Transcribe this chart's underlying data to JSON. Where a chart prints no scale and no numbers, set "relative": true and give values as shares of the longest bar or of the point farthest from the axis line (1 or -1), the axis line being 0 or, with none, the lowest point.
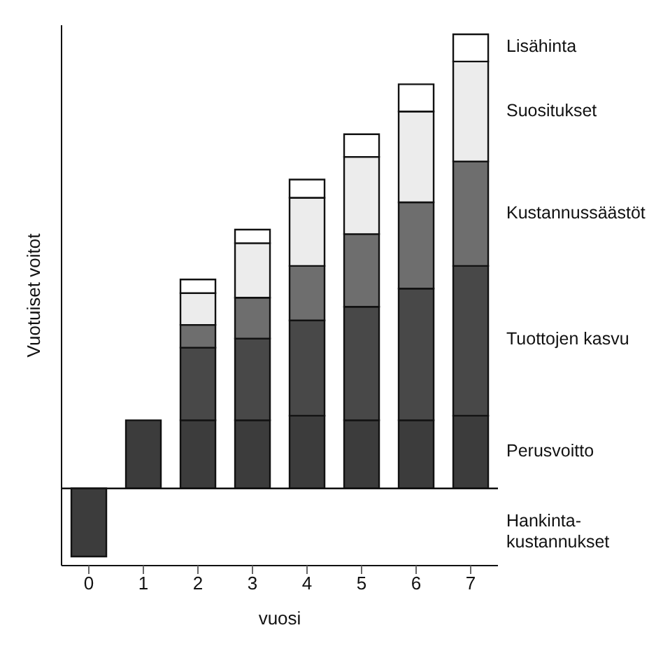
{
  "chart_data": {
    "type": "bar",
    "stacked": true,
    "relative": true,
    "xlabel": "vuosi",
    "ylabel": "Vuotuiset voitot",
    "legend": "right",
    "categories": [
      "0",
      "1",
      "2",
      "3",
      "4",
      "5",
      "6",
      "7"
    ],
    "series": [
      {
        "name": "Perusvoitto",
        "color": "#3c3c3c",
        "values": [
          null,
          0.15,
          0.15,
          0.15,
          0.16,
          0.15,
          0.15,
          0.16
        ]
      },
      {
        "name": "Tuottojen kasvu",
        "color": "#484848",
        "values": [
          null,
          null,
          0.16,
          0.18,
          0.21,
          0.25,
          0.29,
          0.33
        ]
      },
      {
        "name": "Kustannussäästöt",
        "color": "#6e6e6e",
        "values": [
          null,
          null,
          0.05,
          0.09,
          0.12,
          0.16,
          0.19,
          0.23
        ]
      },
      {
        "name": "Suositukset",
        "color": "#ececec",
        "values": [
          null,
          null,
          0.07,
          0.12,
          0.15,
          0.17,
          0.2,
          0.22
        ]
      },
      {
        "name": "Lisähinta",
        "color": "#ffffff",
        "values": [
          null,
          null,
          0.03,
          0.03,
          0.04,
          0.05,
          0.06,
          0.06
        ]
      },
      {
        "name": "Hankinta-kustannukset",
        "color": "#3c3c3c",
        "values": [
          -0.15,
          null,
          null,
          null,
          null,
          null,
          null,
          null
        ]
      }
    ]
  }
}
